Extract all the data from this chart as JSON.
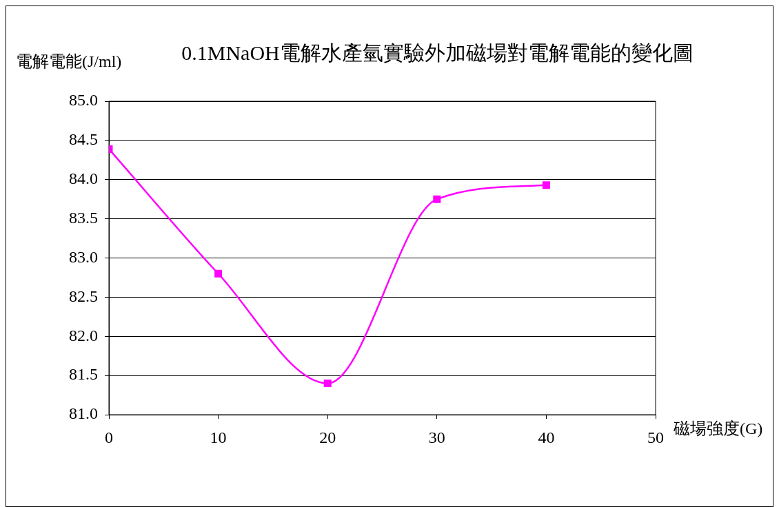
{
  "chart_data": {
    "type": "line",
    "title": "0.1MNaOH電解水產氫實驗外加磁場對電解電能的變化圖",
    "xlabel": "磁場強度(G)",
    "ylabel": "電解電能(J/ml)",
    "x": [
      0,
      10,
      20,
      30,
      40
    ],
    "series": [
      {
        "color": "#ff00ff",
        "values": [
          84.39,
          82.8,
          81.4,
          83.75,
          83.93
        ]
      }
    ],
    "xlim": [
      0,
      50
    ],
    "xticks": [
      0,
      10,
      20,
      30,
      40,
      50
    ],
    "ylim": [
      81,
      85
    ],
    "yticks": [
      {
        "value": 81,
        "label": "81.0"
      },
      {
        "value": 81.5,
        "label": "81.5"
      },
      {
        "value": 82,
        "label": "82.0"
      },
      {
        "value": 82.5,
        "label": "82.5"
      },
      {
        "value": 83,
        "label": "83.0"
      },
      {
        "value": 83.5,
        "label": "83.5"
      },
      {
        "value": 84,
        "label": "84.0"
      },
      {
        "value": 84.5,
        "label": "84.5"
      },
      {
        "value": 85,
        "label": "85.0"
      }
    ],
    "grid": "y",
    "legend": false,
    "marker": "square",
    "line_style": "solid"
  }
}
